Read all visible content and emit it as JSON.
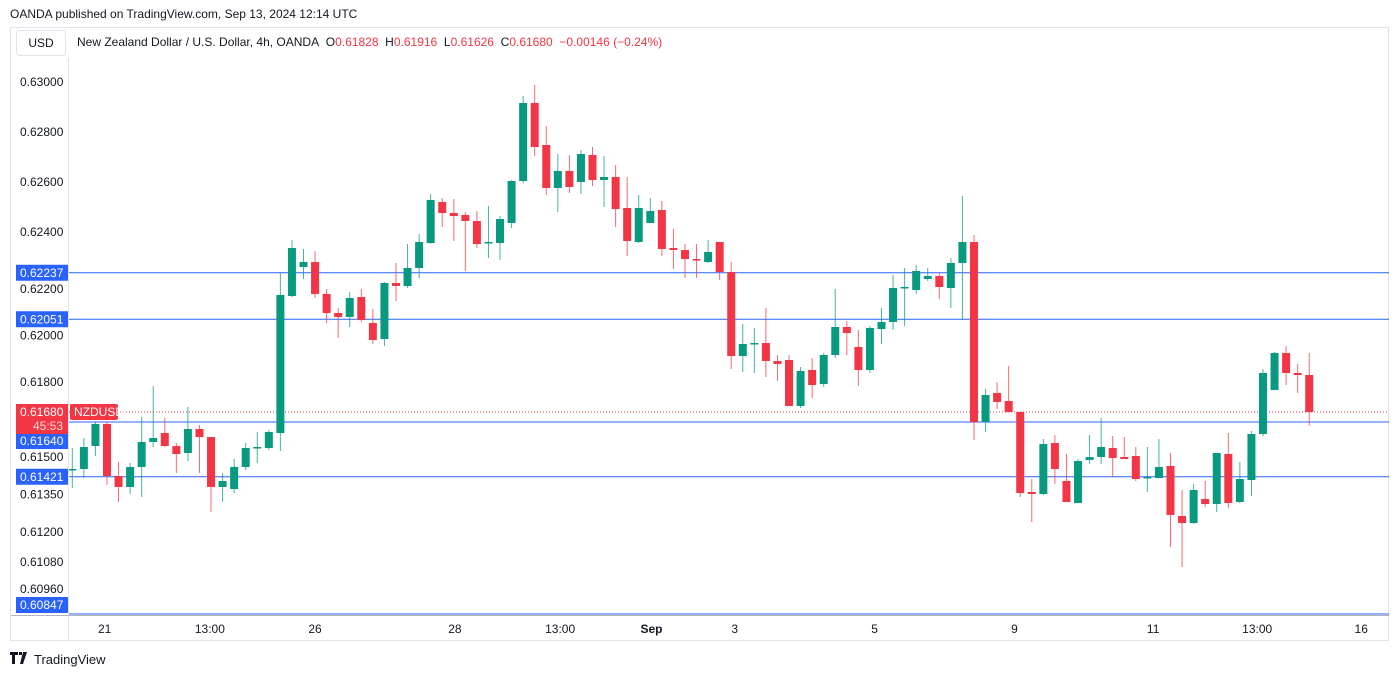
{
  "published": "OANDA published on TradingView.com, Sep 13, 2024 12:14 UTC",
  "currency_button": "USD",
  "legend": {
    "title": "New Zealand Dollar / U.S. Dollar, 4h, OANDA",
    "o_label": "O",
    "o_value": "0.61828",
    "h_label": "H",
    "h_value": "0.61916",
    "l_label": "L",
    "l_value": "0.61626",
    "c_label": "C",
    "c_value": "0.61680",
    "change": "−0.00146 (−0.24%)"
  },
  "footer": {
    "brand": "TradingView",
    "logo": "TV"
  },
  "colors": {
    "up": "#089981",
    "down": "#F23645",
    "level": "#2962FF",
    "text": "#131722"
  },
  "chart_data": {
    "type": "candlestick",
    "symbol": "NZDUSD",
    "interval": "4h",
    "price_axis_side": "left",
    "ylim": [
      0.6087,
      0.632
    ],
    "y_ticks": [
      "0.63000",
      "0.62800",
      "0.62600",
      "0.62400",
      "0.62200",
      "0.62000",
      "0.61800",
      "0.61500",
      "0.61350",
      "0.61200",
      "0.61080",
      "0.60960"
    ],
    "x_ticks": [
      {
        "label": "21",
        "bar": 2.8
      },
      {
        "label": "13:00",
        "bar": 11.9
      },
      {
        "label": "26",
        "bar": 21
      },
      {
        "label": "28",
        "bar": 33.1
      },
      {
        "label": "13:00",
        "bar": 42.2
      },
      {
        "label": "Sep",
        "bar": 50.1,
        "bold": true
      },
      {
        "label": "3",
        "bar": 57.3
      },
      {
        "label": "5",
        "bar": 69.4
      },
      {
        "label": "9",
        "bar": 81.5
      },
      {
        "label": "11",
        "bar": 93.5
      },
      {
        "label": "13:00",
        "bar": 102.5
      },
      {
        "label": "16",
        "bar": 111.5
      }
    ],
    "levels": [
      {
        "price": 0.62237,
        "label": "0.62237"
      },
      {
        "price": 0.62051,
        "label": "0.62051"
      },
      {
        "price": 0.6164,
        "label": "0.61640"
      },
      {
        "price": 0.61421,
        "label": "0.61421"
      },
      {
        "price": 0.60847,
        "label": "0.60847"
      }
    ],
    "last_price": {
      "price": 0.6168,
      "label": "0.61680",
      "tag": "NZDUSD",
      "countdown": "45:53"
    },
    "candles_ohlc": [
      [
        0.61448,
        0.61536,
        0.61376,
        0.61452
      ],
      [
        0.61452,
        0.61576,
        0.61416,
        0.6154
      ],
      [
        0.61544,
        0.6164,
        0.61504,
        0.61632
      ],
      [
        0.61632,
        0.6164,
        0.61388,
        0.61424
      ],
      [
        0.61424,
        0.6148,
        0.6132,
        0.6138
      ],
      [
        0.6138,
        0.61476,
        0.61352,
        0.6146
      ],
      [
        0.6146,
        0.6166,
        0.6134,
        0.6156
      ],
      [
        0.6156,
        0.61784,
        0.6154,
        0.61576
      ],
      [
        0.61596,
        0.61656,
        0.6154,
        0.61544
      ],
      [
        0.61544,
        0.61556,
        0.61436,
        0.61512
      ],
      [
        0.61516,
        0.617,
        0.61484,
        0.61612
      ],
      [
        0.61612,
        0.61628,
        0.61436,
        0.6158
      ],
      [
        0.6158,
        0.6158,
        0.6128,
        0.6138
      ],
      [
        0.6138,
        0.61436,
        0.6132,
        0.61404
      ],
      [
        0.61372,
        0.61492,
        0.61356,
        0.6146
      ],
      [
        0.6146,
        0.61556,
        0.61448,
        0.61536
      ],
      [
        0.61536,
        0.616,
        0.61476,
        0.6154
      ],
      [
        0.61536,
        0.61608,
        0.61528,
        0.616
      ],
      [
        0.61596,
        0.62236,
        0.61524,
        0.62148
      ],
      [
        0.62144,
        0.62368,
        0.6214,
        0.62336
      ],
      [
        0.6226,
        0.62332,
        0.62212,
        0.6228
      ],
      [
        0.6228,
        0.62324,
        0.62136,
        0.62152
      ],
      [
        0.62152,
        0.62172,
        0.62036,
        0.62076
      ],
      [
        0.62076,
        0.62096,
        0.61976,
        0.6206
      ],
      [
        0.6206,
        0.6216,
        0.6202,
        0.62136
      ],
      [
        0.6214,
        0.62172,
        0.6204,
        0.62048
      ],
      [
        0.62036,
        0.62092,
        0.61952,
        0.61968
      ],
      [
        0.61972,
        0.622,
        0.61944,
        0.62196
      ],
      [
        0.62196,
        0.62276,
        0.62124,
        0.62184
      ],
      [
        0.62184,
        0.62352,
        0.62176,
        0.62256
      ],
      [
        0.62256,
        0.62392,
        0.62216,
        0.6236
      ],
      [
        0.62356,
        0.62552,
        0.62352,
        0.62528
      ],
      [
        0.6252,
        0.62536,
        0.6242,
        0.62476
      ],
      [
        0.62476,
        0.62532,
        0.62364,
        0.62464
      ],
      [
        0.62468,
        0.6248,
        0.62244,
        0.62444
      ],
      [
        0.62444,
        0.62484,
        0.62336,
        0.62352
      ],
      [
        0.62356,
        0.62504,
        0.62296,
        0.6236
      ],
      [
        0.62356,
        0.62464,
        0.62288,
        0.62452
      ],
      [
        0.62436,
        0.62608,
        0.62416,
        0.62604
      ],
      [
        0.62604,
        0.62944,
        0.62596,
        0.62916
      ],
      [
        0.62916,
        0.62988,
        0.62704,
        0.6274
      ],
      [
        0.62748,
        0.62824,
        0.62548,
        0.62576
      ],
      [
        0.62576,
        0.62712,
        0.6248,
        0.62644
      ],
      [
        0.62644,
        0.62708,
        0.62556,
        0.6258
      ],
      [
        0.626,
        0.62728,
        0.62552,
        0.62712
      ],
      [
        0.62708,
        0.6274,
        0.62584,
        0.62608
      ],
      [
        0.62608,
        0.62704,
        0.625,
        0.6262
      ],
      [
        0.6262,
        0.62668,
        0.6242,
        0.62492
      ],
      [
        0.62496,
        0.6262,
        0.62304,
        0.62364
      ],
      [
        0.6236,
        0.62548,
        0.62356,
        0.62496
      ],
      [
        0.62436,
        0.62536,
        0.62436,
        0.62484
      ],
      [
        0.62488,
        0.62524,
        0.62304,
        0.62332
      ],
      [
        0.62336,
        0.62412,
        0.62252,
        0.62328
      ],
      [
        0.62328,
        0.62352,
        0.62216,
        0.62292
      ],
      [
        0.62292,
        0.62352,
        0.62216,
        0.62288
      ],
      [
        0.6228,
        0.62368,
        0.62276,
        0.6232
      ],
      [
        0.6236,
        0.6236,
        0.62208,
        0.6224
      ],
      [
        0.6224,
        0.6228,
        0.61852,
        0.61904
      ],
      [
        0.61904,
        0.62032,
        0.6184,
        0.61952
      ],
      [
        0.61952,
        0.62016,
        0.61836,
        0.61956
      ],
      [
        0.61956,
        0.62096,
        0.6182,
        0.61884
      ],
      [
        0.61884,
        0.61908,
        0.61804,
        0.61872
      ],
      [
        0.61888,
        0.61908,
        0.61704,
        0.61704
      ],
      [
        0.61704,
        0.6186,
        0.61696,
        0.61844
      ],
      [
        0.61848,
        0.61896,
        0.61736,
        0.61788
      ],
      [
        0.61792,
        0.61916,
        0.6178,
        0.61908
      ],
      [
        0.61908,
        0.62172,
        0.61896,
        0.6202
      ],
      [
        0.6202,
        0.62044,
        0.61908,
        0.61996
      ],
      [
        0.6194,
        0.62008,
        0.61784,
        0.61848
      ],
      [
        0.61848,
        0.62024,
        0.61836,
        0.62016
      ],
      [
        0.62012,
        0.62096,
        0.61952,
        0.6204
      ],
      [
        0.6204,
        0.62228,
        0.62008,
        0.62176
      ],
      [
        0.62176,
        0.62256,
        0.62024,
        0.6218
      ],
      [
        0.62168,
        0.62268,
        0.62152,
        0.62244
      ],
      [
        0.62212,
        0.62256,
        0.62204,
        0.62224
      ],
      [
        0.62224,
        0.62236,
        0.62132,
        0.6218
      ],
      [
        0.62176,
        0.62296,
        0.62096,
        0.62276
      ],
      [
        0.62276,
        0.62544,
        0.62048,
        0.6236
      ],
      [
        0.6236,
        0.62388,
        0.61568,
        0.6164
      ],
      [
        0.6164,
        0.61772,
        0.616,
        0.61748
      ],
      [
        0.61756,
        0.618,
        0.61692,
        0.6172
      ],
      [
        0.61724,
        0.61864,
        0.6168,
        0.6168
      ],
      [
        0.6168,
        0.6168,
        0.6134,
        0.61356
      ],
      [
        0.6136,
        0.61412,
        0.6124,
        0.61352
      ],
      [
        0.61352,
        0.61572,
        0.61348,
        0.61552
      ],
      [
        0.61556,
        0.61588,
        0.61392,
        0.61452
      ],
      [
        0.61404,
        0.61512,
        0.6132,
        0.6132
      ],
      [
        0.61316,
        0.61492,
        0.61316,
        0.61484
      ],
      [
        0.61488,
        0.61588,
        0.61472,
        0.615
      ],
      [
        0.615,
        0.61656,
        0.61472,
        0.6154
      ],
      [
        0.61536,
        0.61584,
        0.6142,
        0.61496
      ],
      [
        0.615,
        0.6158,
        0.61492,
        0.61492
      ],
      [
        0.61504,
        0.6154,
        0.61404,
        0.61412
      ],
      [
        0.61416,
        0.6154,
        0.6136,
        0.6142
      ],
      [
        0.61416,
        0.61572,
        0.61416,
        0.6146
      ],
      [
        0.61464,
        0.61516,
        0.6114,
        0.61268
      ],
      [
        0.61264,
        0.61368,
        0.6106,
        0.61236
      ],
      [
        0.61236,
        0.61392,
        0.61232,
        0.61368
      ],
      [
        0.61332,
        0.61404,
        0.613,
        0.61312
      ],
      [
        0.61312,
        0.61516,
        0.6128,
        0.61516
      ],
      [
        0.61512,
        0.61596,
        0.61296,
        0.61316
      ],
      [
        0.6132,
        0.6148,
        0.61316,
        0.61412
      ],
      [
        0.61408,
        0.61604,
        0.61344,
        0.61592
      ],
      [
        0.61592,
        0.61852,
        0.61584,
        0.61836
      ],
      [
        0.61768,
        0.6192,
        0.61768,
        0.61916
      ],
      [
        0.61916,
        0.61944,
        0.61788,
        0.61836
      ],
      [
        0.61836,
        0.61872,
        0.61756,
        0.61828
      ],
      [
        0.61828,
        0.61916,
        0.61626,
        0.6168
      ]
    ]
  }
}
